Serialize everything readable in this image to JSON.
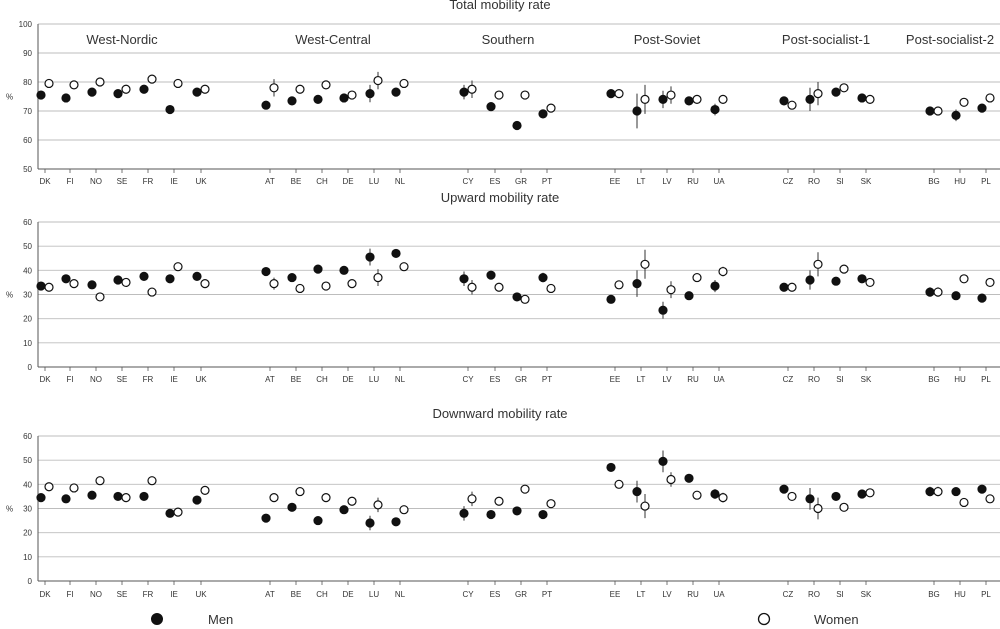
{
  "colors": {
    "men": "#111111",
    "women": "#ffffff",
    "grid": "#bdbdbd",
    "axis": "#555555",
    "text": "#333333"
  },
  "legend": {
    "men": "Men",
    "women": "Women"
  },
  "chart_data": [
    {
      "type": "scatter",
      "title": "Total mobility rate",
      "ylabel": "%",
      "ylim": [
        50,
        100
      ],
      "yticks": [
        50,
        60,
        70,
        80,
        90,
        100
      ],
      "groups": [
        {
          "name": "West-Nordic",
          "countries": [
            "DK",
            "FI",
            "NO",
            "SE",
            "FR",
            "IE",
            "UK"
          ]
        },
        {
          "name": "West-Central",
          "countries": [
            "AT",
            "BE",
            "CH",
            "DE",
            "LU",
            "NL"
          ]
        },
        {
          "name": "Southern",
          "countries": [
            "CY",
            "ES",
            "GR",
            "PT"
          ]
        },
        {
          "name": "Post-Soviet",
          "countries": [
            "EE",
            "LT",
            "LV",
            "RU",
            "UA"
          ]
        },
        {
          "name": "Post-socialist-1",
          "countries": [
            "CZ",
            "RO",
            "SI",
            "SK"
          ]
        },
        {
          "name": "Post-socialist-2",
          "countries": [
            "BG",
            "HU",
            "PL"
          ]
        }
      ],
      "series": [
        {
          "name": "Men",
          "values": [
            75.5,
            74.5,
            76.5,
            76,
            77.5,
            70.5,
            76.5,
            72,
            73.5,
            74,
            74.5,
            76,
            76.5,
            76.5,
            71.5,
            65,
            69,
            76,
            70,
            74,
            73.5,
            70.5,
            73.5,
            74,
            76.5,
            74.5,
            70,
            68.5,
            71
          ],
          "err": [
            1,
            1,
            1,
            1,
            1,
            1.5,
            1,
            1.5,
            1,
            1,
            1,
            3,
            1.5,
            2.5,
            1,
            1,
            1.5,
            1.5,
            6,
            3,
            1.5,
            2,
            1.5,
            4,
            1.5,
            1.5,
            1.5,
            2,
            1
          ]
        },
        {
          "name": "Women",
          "values": [
            79.5,
            79,
            80,
            77.5,
            81,
            79.5,
            77.5,
            78,
            77.5,
            79,
            75.5,
            80.5,
            79.5,
            77.5,
            75.5,
            75.5,
            71,
            76,
            74,
            75.5,
            74,
            74,
            72,
            76,
            78,
            74,
            70,
            73,
            74.5
          ],
          "err": [
            1,
            1,
            1,
            1,
            1.5,
            1,
            1,
            3,
            1,
            1,
            1,
            3,
            1,
            3,
            1,
            1,
            1.5,
            1,
            5,
            3,
            1.5,
            1.5,
            1.5,
            4,
            1.5,
            1.5,
            1.5,
            1.5,
            1
          ]
        }
      ]
    },
    {
      "type": "scatter",
      "title": "Upward mobility rate",
      "ylabel": "%",
      "ylim": [
        0,
        60
      ],
      "yticks": [
        0,
        10,
        20,
        30,
        40,
        50,
        60
      ],
      "groups": [
        {
          "name": "",
          "countries": [
            "DK",
            "FI",
            "NO",
            "SE",
            "FR",
            "IE",
            "UK"
          ]
        },
        {
          "name": "",
          "countries": [
            "AT",
            "BE",
            "CH",
            "DE",
            "LU",
            "NL"
          ]
        },
        {
          "name": "",
          "countries": [
            "CY",
            "ES",
            "GR",
            "PT"
          ]
        },
        {
          "name": "",
          "countries": [
            "EE",
            "LT",
            "LV",
            "RU",
            "UA"
          ]
        },
        {
          "name": "",
          "countries": [
            "CZ",
            "RO",
            "SI",
            "SK"
          ]
        },
        {
          "name": "",
          "countries": [
            "BG",
            "HU",
            "PL"
          ]
        }
      ],
      "series": [
        {
          "name": "Men",
          "values": [
            33.5,
            36.5,
            34,
            36,
            37.5,
            36.5,
            37.5,
            39.5,
            37,
            40.5,
            40,
            45.5,
            47,
            36.5,
            38,
            29,
            37,
            28,
            34.5,
            23.5,
            29.5,
            33.5,
            33,
            36,
            35.5,
            36.5,
            31,
            29.5,
            28.5
          ],
          "err": [
            1,
            1,
            1,
            1,
            1.5,
            1,
            1,
            1.5,
            1,
            1,
            1,
            3.5,
            1,
            3,
            1,
            1,
            2,
            1.5,
            5.5,
            3.5,
            1.5,
            2.5,
            1.5,
            4,
            1.5,
            1.5,
            2,
            1.5,
            1
          ]
        },
        {
          "name": "Women",
          "values": [
            33,
            34.5,
            29,
            35,
            31,
            41.5,
            34.5,
            34.5,
            32.5,
            33.5,
            34.5,
            37,
            41.5,
            33,
            33,
            28,
            32.5,
            34,
            42.5,
            32,
            37,
            39.5,
            33,
            42.5,
            40.5,
            35,
            31,
            36.5,
            35
          ],
          "err": [
            1,
            1,
            1,
            1,
            1,
            1,
            1,
            2.5,
            1,
            1,
            1,
            3.5,
            1,
            3,
            1,
            1,
            1.5,
            1.5,
            6,
            3.5,
            1.5,
            2,
            1.5,
            5,
            1.5,
            1.5,
            2,
            1.5,
            1
          ]
        }
      ]
    },
    {
      "type": "scatter",
      "title": "Downward mobility rate",
      "ylabel": "%",
      "ylim": [
        0,
        60
      ],
      "yticks": [
        0,
        10,
        20,
        30,
        40,
        50,
        60
      ],
      "groups": [
        {
          "name": "",
          "countries": [
            "DK",
            "FI",
            "NO",
            "SE",
            "FR",
            "IE",
            "UK"
          ]
        },
        {
          "name": "",
          "countries": [
            "AT",
            "BE",
            "CH",
            "DE",
            "LU",
            "NL"
          ]
        },
        {
          "name": "",
          "countries": [
            "CY",
            "ES",
            "GR",
            "PT"
          ]
        },
        {
          "name": "",
          "countries": [
            "EE",
            "LT",
            "LV",
            "RU",
            "UA"
          ]
        },
        {
          "name": "",
          "countries": [
            "CZ",
            "RO",
            "SI",
            "SK"
          ]
        },
        {
          "name": "",
          "countries": [
            "BG",
            "HU",
            "PL"
          ]
        }
      ],
      "series": [
        {
          "name": "Men",
          "values": [
            34.5,
            34,
            35.5,
            35,
            35,
            28,
            33.5,
            26,
            30.5,
            25,
            29.5,
            24,
            24.5,
            28,
            27.5,
            29,
            27.5,
            47,
            37,
            49.5,
            42.5,
            36,
            38,
            34,
            35,
            36,
            37,
            37,
            38
          ],
          "err": [
            1,
            1,
            1,
            1,
            1,
            1,
            1,
            1.5,
            1,
            1,
            1,
            3,
            1,
            3,
            1,
            1,
            1.5,
            1.5,
            4.5,
            4.5,
            1.5,
            2,
            1.5,
            4.5,
            1.5,
            1.5,
            2,
            1.5,
            1
          ]
        },
        {
          "name": "Women",
          "values": [
            39,
            38.5,
            41.5,
            34.5,
            41.5,
            28.5,
            37.5,
            34.5,
            37,
            34.5,
            33,
            31.5,
            29.5,
            34,
            33,
            38,
            32,
            40,
            31,
            42,
            35.5,
            34.5,
            35,
            30,
            30.5,
            36.5,
            37,
            32.5,
            34
          ],
          "err": [
            1,
            1,
            1,
            1,
            1.5,
            1,
            1,
            1.5,
            1,
            1,
            1,
            3,
            1,
            3,
            1,
            1,
            1.5,
            1,
            5,
            3,
            1.5,
            2,
            1.5,
            4.5,
            1.5,
            1.5,
            2,
            1.5,
            1
          ]
        }
      ]
    }
  ]
}
